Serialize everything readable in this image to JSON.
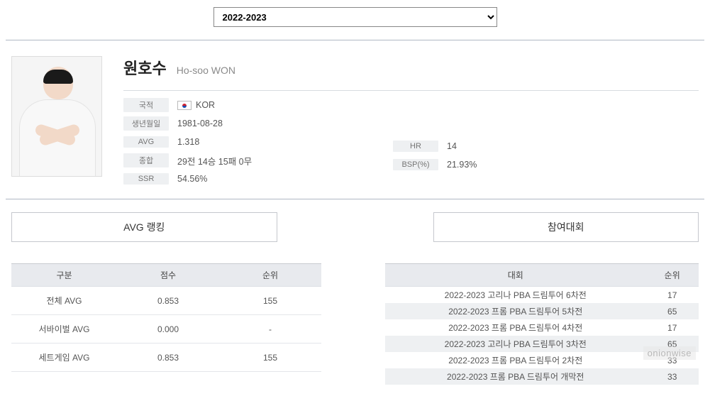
{
  "season": {
    "selected": "2022-2023"
  },
  "player": {
    "name_kr": "원호수",
    "name_en": "Ho-soo WON",
    "labels": {
      "nationality": "국적",
      "birthdate": "생년월일",
      "avg": "AVG",
      "total": "종합",
      "ssr": "SSR",
      "hr": "HR",
      "bsp": "BSP(%)"
    },
    "nationality_code": "KOR",
    "birthdate": "1981-08-28",
    "avg": "1.318",
    "total": "29전 14승 15패 0무",
    "ssr": "54.56%",
    "hr": "14",
    "bsp": "21.93%"
  },
  "buttons": {
    "avg_ranking": "AVG 랭킹",
    "tournaments": "참여대회"
  },
  "avg_table": {
    "cols": {
      "category": "구분",
      "score": "점수",
      "rank": "순위"
    },
    "rows": [
      {
        "category": "전체 AVG",
        "score": "0.853",
        "rank": "155"
      },
      {
        "category": "서바이벌 AVG",
        "score": "0.000",
        "rank": "-"
      },
      {
        "category": "세트게임 AVG",
        "score": "0.853",
        "rank": "155"
      }
    ]
  },
  "tour_table": {
    "cols": {
      "tournament": "대회",
      "rank": "순위"
    },
    "rows": [
      {
        "t": "2022-2023 고리나 PBA 드림투어 6차전",
        "r": "17"
      },
      {
        "t": "2022-2023 프롬 PBA 드림투어 5차전",
        "r": "65"
      },
      {
        "t": "2022-2023 프롬 PBA 드림투어 4차전",
        "r": "17"
      },
      {
        "t": "2022-2023 고리나 PBA 드림투어 3차전",
        "r": "65"
      },
      {
        "t": "2022-2023 프롬 PBA 드림투어 2차전",
        "r": "33"
      },
      {
        "t": "2022-2023 프롬 PBA 드림투어 개막전",
        "r": "33"
      }
    ]
  },
  "watermark": "onionwise"
}
